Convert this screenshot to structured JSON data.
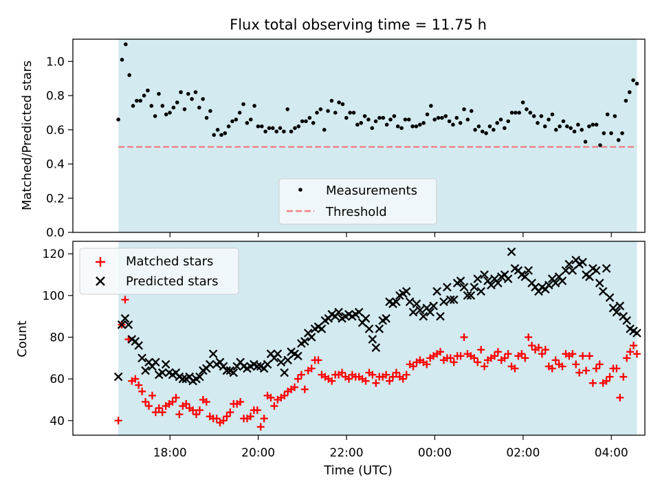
{
  "chart_data": [
    {
      "type": "scatter",
      "title": "Flux total observing time = 11.75 h",
      "xlabel": "",
      "ylabel": "Matched/Predicted stars",
      "ylim": [
        0,
        1.13
      ],
      "yticks": [
        "0.0",
        "0.2",
        "0.4",
        "0.6",
        "0.8",
        "1.0"
      ],
      "grid": false,
      "legend_position": "bottom-center",
      "shaded_band": {
        "start_hour": 16.83,
        "end_hour": 28.58,
        "color": "#d3eaf0"
      },
      "threshold": {
        "name": "Threshold",
        "value": 0.5,
        "color": "#f08080"
      },
      "series": [
        {
          "name": "Measurements",
          "color": "#000000",
          "marker": "dot",
          "values": [
            0.66,
            1.01,
            1.1,
            0.92,
            0.74,
            0.77,
            0.77,
            0.8,
            0.83,
            0.74,
            0.68,
            0.81,
            0.74,
            0.69,
            0.7,
            0.73,
            0.76,
            0.82,
            0.72,
            0.81,
            0.78,
            0.82,
            0.73,
            0.78,
            0.67,
            0.71,
            0.57,
            0.6,
            0.57,
            0.58,
            0.62,
            0.65,
            0.66,
            0.7,
            0.75,
            0.64,
            0.66,
            0.74,
            0.62,
            0.62,
            0.59,
            0.61,
            0.61,
            0.59,
            0.61,
            0.59,
            0.72,
            0.59,
            0.61,
            0.62,
            0.65,
            0.65,
            0.67,
            0.64,
            0.7,
            0.72,
            0.6,
            0.71,
            0.77,
            0.7,
            0.76,
            0.75,
            0.67,
            0.7,
            0.7,
            0.63,
            0.64,
            0.68,
            0.66,
            0.61,
            0.65,
            0.67,
            0.67,
            0.63,
            0.66,
            0.68,
            0.62,
            0.61,
            0.66,
            0.66,
            0.62,
            0.62,
            0.63,
            0.64,
            0.69,
            0.74,
            0.66,
            0.67,
            0.67,
            0.68,
            0.65,
            0.63,
            0.67,
            0.64,
            0.72,
            0.66,
            0.71,
            0.6,
            0.62,
            0.59,
            0.58,
            0.62,
            0.6,
            0.64,
            0.66,
            0.61,
            0.65,
            0.7,
            0.7,
            0.7,
            0.76,
            0.72,
            0.7,
            0.68,
            0.64,
            0.68,
            0.62,
            0.66,
            0.69,
            0.6,
            0.62,
            0.65,
            0.62,
            0.61,
            0.59,
            0.63,
            0.6,
            0.53,
            0.62,
            0.63,
            0.63,
            0.51,
            0.58,
            0.69,
            0.58,
            0.68,
            0.54,
            0.58,
            0.77,
            0.82,
            0.89,
            0.87
          ]
        }
      ]
    },
    {
      "type": "scatter",
      "title": "",
      "xlabel": "Time (UTC)",
      "ylabel": "Count",
      "ylim": [
        33,
        126
      ],
      "yticks": [
        "40",
        "60",
        "80",
        "100",
        "120"
      ],
      "xticks": [
        "18:00",
        "20:00",
        "22:00",
        "00:00",
        "02:00",
        "04:00"
      ],
      "xrange_hours": [
        15.8,
        28.76
      ],
      "grid": false,
      "legend_position": "top-left",
      "series": [
        {
          "name": "Matched stars",
          "color": "#ff0000",
          "marker": "plus",
          "values": [
            40,
            86,
            98,
            79,
            59,
            60,
            57,
            54,
            49,
            47,
            52,
            44,
            46,
            44,
            47,
            48,
            49,
            51,
            43,
            47,
            48,
            46,
            45,
            43,
            45,
            50,
            49,
            42,
            41,
            41,
            39,
            40,
            42,
            44,
            48,
            48,
            49,
            41,
            41,
            42,
            45,
            45,
            37,
            41,
            52,
            51,
            47,
            50,
            51,
            52,
            54,
            55,
            56,
            60,
            62,
            55,
            64,
            65,
            69,
            69,
            62,
            61,
            60,
            59,
            62,
            62,
            63,
            61,
            60,
            62,
            61,
            61,
            60,
            59,
            63,
            62,
            58,
            61,
            61,
            62,
            59,
            61,
            63,
            61,
            60,
            62,
            67,
            66,
            68,
            69,
            68,
            67,
            70,
            71,
            72,
            73,
            69,
            70,
            70,
            68,
            71,
            71,
            80,
            72,
            71,
            70,
            68,
            74,
            66,
            69,
            70,
            71,
            73,
            69,
            70,
            72,
            66,
            65,
            71,
            72,
            70,
            80,
            76,
            74,
            75,
            72,
            74,
            66,
            65,
            69,
            67,
            66,
            72,
            71,
            72,
            67,
            63,
            71,
            64,
            71,
            58,
            65,
            67,
            58,
            59,
            61,
            65,
            65,
            51,
            61,
            70,
            73,
            76,
            72
          ],
          "x_start_hour": 16.83,
          "x_end_hour": 28.58
        },
        {
          "name": "Predicted stars",
          "color": "#000000",
          "marker": "x",
          "values": [
            61,
            86,
            89,
            86,
            79,
            78,
            76,
            70,
            64,
            68,
            66,
            68,
            62,
            63,
            67,
            63,
            62,
            63,
            61,
            60,
            60,
            61,
            59,
            60,
            61,
            64,
            65,
            67,
            72,
            67,
            68,
            66,
            64,
            64,
            63,
            66,
            68,
            66,
            65,
            66,
            67,
            66,
            66,
            65,
            67,
            72,
            70,
            72,
            68,
            63,
            69,
            73,
            72,
            71,
            77,
            78,
            82,
            80,
            84,
            85,
            84,
            88,
            89,
            91,
            90,
            92,
            89,
            90,
            91,
            90,
            91,
            92,
            87,
            89,
            84,
            79,
            75,
            84,
            88,
            89,
            97,
            96,
            97,
            100,
            101,
            102,
            97,
            92,
            96,
            93,
            90,
            94,
            92,
            95,
            102,
            90,
            97,
            104,
            98,
            98,
            106,
            107,
            104,
            100,
            100,
            104,
            108,
            102,
            110,
            107,
            105,
            108,
            106,
            109,
            110,
            108,
            121,
            113,
            112,
            110,
            109,
            112,
            106,
            104,
            102,
            104,
            103,
            105,
            108,
            106,
            109,
            107,
            112,
            115,
            112,
            117,
            115,
            116,
            110,
            109,
            113,
            112,
            106,
            102,
            113,
            99,
            94,
            92,
            95,
            90,
            88,
            84,
            83,
            82
          ],
          "x_start_hour": 16.83,
          "x_end_hour": 28.58
        }
      ]
    }
  ]
}
